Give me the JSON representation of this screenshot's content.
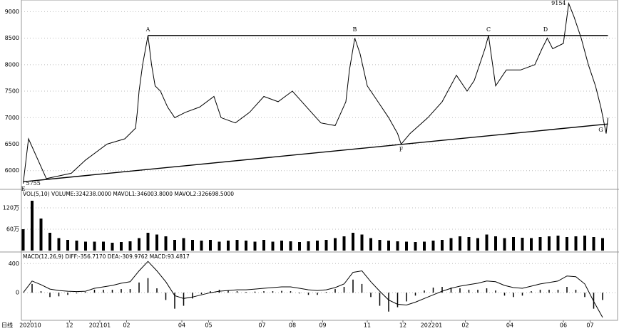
{
  "chart_data": [
    {
      "type": "line",
      "color": "#000000",
      "xlim": [
        0,
        330
      ],
      "ylim": [
        5660,
        9220
      ],
      "yticks": [
        6000,
        6500,
        7000,
        7500,
        8000,
        8500,
        9000
      ],
      "grid": true,
      "x": [
        1,
        4,
        14,
        28,
        36,
        48,
        58,
        64,
        65,
        66,
        68,
        71,
        73,
        75,
        78,
        82,
        86,
        92,
        100,
        108,
        112,
        120,
        128,
        136,
        144,
        152,
        160,
        168,
        176,
        182,
        184,
        187,
        190,
        194,
        200,
        206,
        211,
        213,
        218,
        228,
        236,
        244,
        250,
        254,
        260,
        262,
        266,
        272,
        280,
        288,
        292,
        295,
        298,
        304,
        307,
        310,
        314,
        318,
        322,
        325,
        328,
        329
      ],
      "values": [
        5755,
        6600,
        5850,
        5950,
        6200,
        6500,
        6600,
        6800,
        7100,
        7500,
        8000,
        8550,
        8000,
        7600,
        7500,
        7200,
        7000,
        7100,
        7200,
        7400,
        7000,
        6900,
        7100,
        7400,
        7300,
        7500,
        7200,
        6900,
        6850,
        7300,
        7900,
        8500,
        8200,
        7600,
        7300,
        7000,
        6700,
        6500,
        6700,
        7000,
        7300,
        7800,
        7500,
        7700,
        8300,
        8550,
        7600,
        7900,
        7900,
        8000,
        8300,
        8500,
        8300,
        8400,
        9154,
        8900,
        8500,
        8000,
        7600,
        7200,
        6700,
        7000
      ],
      "lines": [
        {
          "x": [
            71,
            329
          ],
          "y": [
            8550,
            8550
          ]
        },
        {
          "x": [
            1,
            329
          ],
          "y": [
            5790,
            6880
          ]
        }
      ],
      "annotations": [
        {
          "text": "A",
          "x": 71,
          "y": 8550,
          "position": "above"
        },
        {
          "text": "B",
          "x": 187,
          "y": 8550,
          "position": "above"
        },
        {
          "text": "C",
          "x": 262,
          "y": 8550,
          "position": "above"
        },
        {
          "text": "D",
          "x": 294,
          "y": 8550,
          "position": "above"
        },
        {
          "text": "E",
          "x": 1,
          "y": 5755,
          "position": "below"
        },
        {
          "text": "F",
          "x": 213,
          "y": 6500,
          "position": "below"
        },
        {
          "text": "G",
          "x": 325,
          "y": 6870,
          "position": "below"
        },
        {
          "text": "9154",
          "x": 307,
          "y": 9154,
          "position": "left"
        },
        {
          "text": "5755",
          "x": 1,
          "y": 5755,
          "position": "right"
        }
      ]
    },
    {
      "type": "bar",
      "color": "#000000",
      "title": "VOL(5,10) VOLUME:324238.0000 MAVOL1:346003.8000 MAVOL2:326698.5000",
      "xlim": [
        0,
        330
      ],
      "ylim": [
        0,
        168
      ],
      "yticks": [
        {
          "value": 60,
          "label": "60万"
        },
        {
          "value": 120,
          "label": "120万"
        }
      ],
      "grid": true,
      "x": [
        1,
        6,
        11,
        16,
        21,
        26,
        31,
        36,
        41,
        46,
        51,
        56,
        61,
        66,
        71,
        76,
        81,
        86,
        91,
        96,
        101,
        106,
        111,
        116,
        121,
        126,
        131,
        136,
        141,
        146,
        151,
        156,
        161,
        166,
        171,
        176,
        181,
        186,
        191,
        196,
        201,
        206,
        211,
        216,
        221,
        226,
        231,
        236,
        241,
        246,
        251,
        256,
        261,
        266,
        271,
        276,
        281,
        286,
        291,
        296,
        301,
        306,
        311,
        316,
        321,
        326
      ],
      "values": [
        60,
        140,
        90,
        50,
        35,
        30,
        28,
        25,
        25,
        25,
        22,
        24,
        26,
        35,
        50,
        45,
        40,
        30,
        35,
        30,
        28,
        30,
        25,
        28,
        30,
        28,
        25,
        30,
        25,
        28,
        26,
        24,
        26,
        28,
        30,
        35,
        40,
        50,
        45,
        35,
        30,
        28,
        26,
        25,
        24,
        25,
        28,
        30,
        35,
        40,
        38,
        35,
        45,
        40,
        35,
        38,
        36,
        35,
        38,
        40,
        42,
        38,
        40,
        42,
        38,
        35
      ]
    },
    {
      "type": "macd",
      "color": "#000000",
      "title": "MACD(12,26,9) DIFF:-356.7170 DEA:-309.9762 MACD:93.4817",
      "xlim": [
        0,
        330
      ],
      "ylim": [
        -380,
        540
      ],
      "yticks": [
        0,
        400
      ],
      "grid": true,
      "period_label": "日线",
      "x": [
        1,
        6,
        11,
        16,
        21,
        26,
        31,
        36,
        41,
        46,
        51,
        56,
        61,
        66,
        71,
        76,
        81,
        86,
        91,
        96,
        101,
        106,
        111,
        116,
        121,
        126,
        131,
        136,
        141,
        146,
        151,
        156,
        161,
        166,
        171,
        176,
        181,
        186,
        191,
        196,
        201,
        206,
        211,
        216,
        221,
        226,
        231,
        236,
        241,
        246,
        251,
        256,
        261,
        266,
        271,
        276,
        281,
        286,
        291,
        296,
        301,
        306,
        311,
        316,
        321,
        326
      ],
      "series": [
        {
          "type": "line",
          "values": [
            0,
            160,
            110,
            50,
            30,
            20,
            15,
            20,
            60,
            80,
            100,
            130,
            150,
            300,
            430,
            300,
            150,
            -40,
            -80,
            -60,
            -30,
            0,
            20,
            30,
            40,
            40,
            50,
            60,
            70,
            80,
            80,
            60,
            40,
            30,
            40,
            70,
            120,
            280,
            300,
            150,
            20,
            -100,
            -160,
            -170,
            -130,
            -80,
            -30,
            20,
            60,
            90,
            110,
            130,
            160,
            150,
            100,
            70,
            60,
            90,
            120,
            140,
            160,
            230,
            220,
            120,
            -120,
            -340
          ]
        },
        {
          "type": "bar",
          "values": [
            0,
            120,
            20,
            -60,
            -50,
            -30,
            -10,
            10,
            40,
            40,
            40,
            50,
            50,
            140,
            200,
            60,
            -100,
            -220,
            -180,
            -80,
            -20,
            20,
            40,
            30,
            20,
            10,
            15,
            20,
            20,
            25,
            20,
            -10,
            -30,
            -30,
            10,
            50,
            80,
            180,
            120,
            -60,
            -180,
            -260,
            -200,
            -120,
            -40,
            30,
            70,
            80,
            70,
            60,
            40,
            40,
            60,
            30,
            -40,
            -60,
            -40,
            20,
            40,
            40,
            40,
            80,
            40,
            -60,
            -220,
            -100
          ]
        }
      ],
      "xticks": [
        {
          "value": 5,
          "label": "202010"
        },
        {
          "value": 27,
          "label": "12"
        },
        {
          "value": 44,
          "label": "202101"
        },
        {
          "value": 59,
          "label": "02"
        },
        {
          "value": 90,
          "label": "04"
        },
        {
          "value": 105,
          "label": "05"
        },
        {
          "value": 135,
          "label": "07"
        },
        {
          "value": 152,
          "label": "08"
        },
        {
          "value": 169,
          "label": "09"
        },
        {
          "value": 194,
          "label": "11"
        },
        {
          "value": 214,
          "label": "12"
        },
        {
          "value": 230,
          "label": "202201"
        },
        {
          "value": 249,
          "label": "02"
        },
        {
          "value": 274,
          "label": "04"
        },
        {
          "value": 304,
          "label": "06"
        },
        {
          "value": 319,
          "label": "07"
        }
      ]
    }
  ]
}
